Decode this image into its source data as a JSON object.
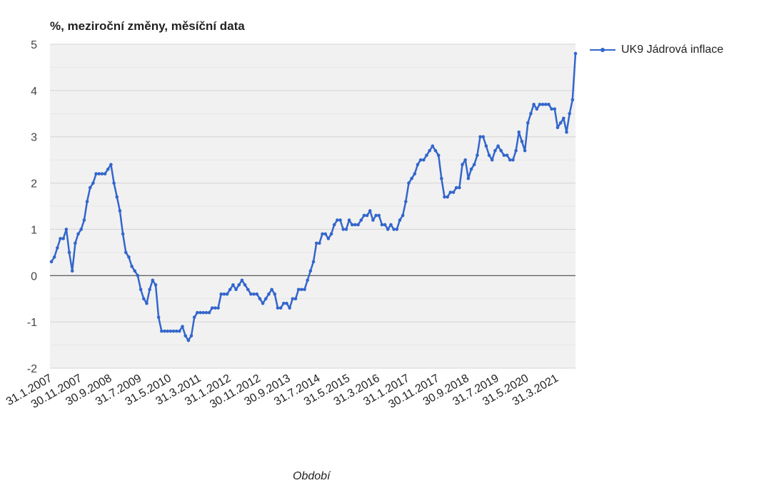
{
  "chart_data": {
    "type": "line",
    "title": "%, meziroční změny, měsíční data",
    "xlabel": "Období",
    "ylabel": "",
    "ylim": [
      -2,
      5
    ],
    "yticks": [
      "5",
      "4",
      "3",
      "2",
      "1",
      "0",
      "-1",
      "-2"
    ],
    "grid": true,
    "legend_position": "top-right",
    "x_start": "31.1.2007",
    "x_tick_labels": [
      "31.1.2007",
      "30.11.2007",
      "30.9.2008",
      "31.7.2009",
      "31.5.2010",
      "31.3.2011",
      "31.1.2012",
      "30.11.2012",
      "30.9.2013",
      "31.7.2014",
      "31.5.2015",
      "31.3.2016",
      "31.1.2017",
      "30.11.2017",
      "30.9.2018",
      "31.7.2019",
      "31.5.2020",
      "31.3.2021"
    ],
    "colors": {
      "series": "#3366cc",
      "plot_background": "#f1f1f1",
      "grid": "#d9d9d9",
      "zero_line": "#333333"
    },
    "series": [
      {
        "name": "UK9 Jádrová inflace",
        "values": [
          0.3,
          0.4,
          0.6,
          0.8,
          0.8,
          1.0,
          0.5,
          0.1,
          0.7,
          0.9,
          1.0,
          1.2,
          1.6,
          1.9,
          2.0,
          2.2,
          2.2,
          2.2,
          2.2,
          2.3,
          2.4,
          2.0,
          1.7,
          1.4,
          0.9,
          0.5,
          0.4,
          0.2,
          0.1,
          0.0,
          -0.3,
          -0.5,
          -0.6,
          -0.3,
          -0.1,
          -0.2,
          -0.9,
          -1.2,
          -1.2,
          -1.2,
          -1.2,
          -1.2,
          -1.2,
          -1.2,
          -1.1,
          -1.3,
          -1.4,
          -1.3,
          -0.9,
          -0.8,
          -0.8,
          -0.8,
          -0.8,
          -0.8,
          -0.7,
          -0.7,
          -0.7,
          -0.4,
          -0.4,
          -0.4,
          -0.3,
          -0.2,
          -0.3,
          -0.2,
          -0.1,
          -0.2,
          -0.3,
          -0.4,
          -0.4,
          -0.4,
          -0.5,
          -0.6,
          -0.5,
          -0.4,
          -0.3,
          -0.4,
          -0.7,
          -0.7,
          -0.6,
          -0.6,
          -0.7,
          -0.5,
          -0.5,
          -0.3,
          -0.3,
          -0.3,
          -0.1,
          0.1,
          0.3,
          0.7,
          0.7,
          0.9,
          0.9,
          0.8,
          0.9,
          1.1,
          1.2,
          1.2,
          1.0,
          1.0,
          1.2,
          1.1,
          1.1,
          1.1,
          1.2,
          1.3,
          1.3,
          1.4,
          1.2,
          1.3,
          1.3,
          1.1,
          1.1,
          1.0,
          1.1,
          1.0,
          1.0,
          1.2,
          1.3,
          1.6,
          2.0,
          2.1,
          2.2,
          2.4,
          2.5,
          2.5,
          2.6,
          2.7,
          2.8,
          2.7,
          2.6,
          2.1,
          1.7,
          1.7,
          1.8,
          1.8,
          1.9,
          1.9,
          2.4,
          2.5,
          2.1,
          2.3,
          2.4,
          2.6,
          3.0,
          3.0,
          2.8,
          2.6,
          2.5,
          2.7,
          2.8,
          2.7,
          2.6,
          2.6,
          2.5,
          2.5,
          2.7,
          3.1,
          2.9,
          2.7,
          3.3,
          3.5,
          3.7,
          3.6,
          3.7,
          3.7,
          3.7,
          3.7,
          3.6,
          3.6,
          3.2,
          3.3,
          3.4,
          3.1,
          3.5,
          3.8,
          4.8
        ]
      }
    ]
  }
}
